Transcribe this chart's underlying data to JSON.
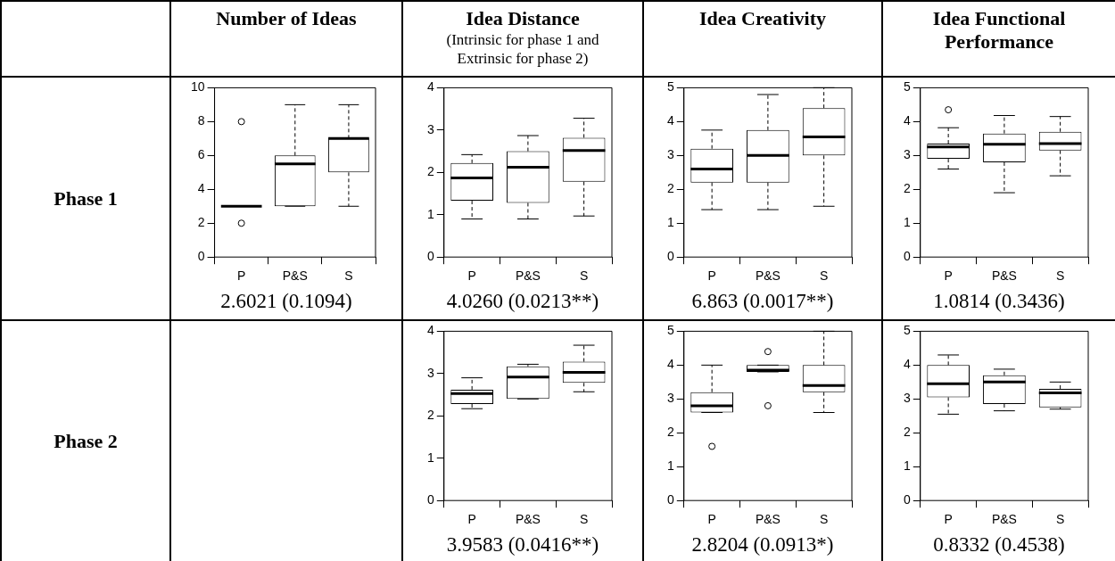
{
  "chart_data": [
    {
      "type": "other",
      "annotations": [
        "Phase 1",
        "Phase 2"
      ]
    },
    {
      "type": "box",
      "title": "Number of Ideas",
      "categories": [
        "P",
        "P&S",
        "S"
      ],
      "ylim": [
        0,
        10
      ],
      "yticks": [
        0,
        2,
        4,
        6,
        8,
        10
      ],
      "grid": false,
      "annotations": [
        "2.6021 (0.1094)"
      ],
      "boxes": [
        {
          "low": 3,
          "q1": 3,
          "median": 3,
          "q3": 3,
          "high": 3,
          "outliers": [
            8,
            2
          ]
        },
        {
          "low": 3,
          "q1": 3,
          "median": 5.5,
          "q3": 6,
          "high": 9
        },
        {
          "low": 3,
          "q1": 5,
          "median": 7,
          "q3": 7,
          "high": 9
        }
      ]
    },
    {
      "type": "box",
      "title": "Idea Distance",
      "subtitle": "(Intrinsic for phase 1 and Extrinsic for phase 2)",
      "categories": [
        "P",
        "P&S",
        "S"
      ],
      "ylim": [
        0,
        4
      ],
      "yticks": [
        0,
        1,
        2,
        3,
        4
      ],
      "grid": false,
      "annotations": [
        "4.0260 (0.0213**)"
      ],
      "boxes": [
        {
          "low": 0.9,
          "q1": 1.33,
          "median": 1.87,
          "q3": 2.22,
          "high": 2.42
        },
        {
          "low": 0.9,
          "q1": 1.28,
          "median": 2.12,
          "q3": 2.5,
          "high": 2.87
        },
        {
          "low": 0.97,
          "q1": 1.78,
          "median": 2.52,
          "q3": 2.82,
          "high": 3.28
        }
      ]
    },
    {
      "type": "box",
      "title": "Idea Creativity",
      "categories": [
        "P",
        "P&S",
        "S"
      ],
      "ylim": [
        0,
        5
      ],
      "yticks": [
        0,
        1,
        2,
        3,
        4,
        5
      ],
      "grid": false,
      "annotations": [
        "6.863 (0.0017**)"
      ],
      "boxes": [
        {
          "low": 1.4,
          "q1": 2.2,
          "median": 2.6,
          "q3": 3.2,
          "high": 3.75
        },
        {
          "low": 1.4,
          "q1": 2.2,
          "median": 3.0,
          "q3": 3.75,
          "high": 4.8
        },
        {
          "low": 1.5,
          "q1": 3.0,
          "median": 3.55,
          "q3": 4.4,
          "high": 5.0
        }
      ]
    },
    {
      "type": "box",
      "title": "Idea Functional Performance",
      "categories": [
        "P",
        "P&S",
        "S"
      ],
      "ylim": [
        0,
        5
      ],
      "yticks": [
        0,
        1,
        2,
        3,
        4,
        5
      ],
      "grid": false,
      "annotations": [
        "1.0814 (0.3436)"
      ],
      "boxes": [
        {
          "low": 2.6,
          "q1": 2.9,
          "median": 3.25,
          "q3": 3.35,
          "high": 3.82,
          "outliers": [
            4.35
          ]
        },
        {
          "low": 1.9,
          "q1": 2.8,
          "median": 3.33,
          "q3": 3.65,
          "high": 4.18
        },
        {
          "low": 2.4,
          "q1": 3.15,
          "median": 3.35,
          "q3": 3.7,
          "high": 4.15
        }
      ]
    },
    {
      "type": "box",
      "categories": [
        "P",
        "P&S",
        "S"
      ],
      "ylim": [
        0,
        4
      ],
      "yticks": [
        0,
        1,
        2,
        3,
        4
      ],
      "grid": false,
      "annotations": [
        "3.9583 (0.0416**)"
      ],
      "boxes": [
        {
          "low": 2.17,
          "q1": 2.28,
          "median": 2.53,
          "q3": 2.62,
          "high": 2.9
        },
        {
          "low": 2.4,
          "q1": 2.4,
          "median": 2.92,
          "q3": 3.17,
          "high": 3.22
        },
        {
          "low": 2.57,
          "q1": 2.78,
          "median": 3.03,
          "q3": 3.28,
          "high": 3.67
        }
      ]
    },
    {
      "type": "box",
      "categories": [
        "P",
        "P&S",
        "S"
      ],
      "ylim": [
        0,
        5
      ],
      "yticks": [
        0,
        1,
        2,
        3,
        4,
        5
      ],
      "grid": false,
      "annotations": [
        "2.8204 (0.0913*)"
      ],
      "boxes": [
        {
          "low": 2.6,
          "q1": 2.6,
          "median": 2.8,
          "q3": 3.2,
          "high": 4.0,
          "outliers": [
            1.6
          ]
        },
        {
          "low": 3.8,
          "q1": 3.8,
          "median": 3.85,
          "q3": 4.0,
          "high": 4.0,
          "outliers": [
            4.4,
            2.8
          ]
        },
        {
          "low": 2.6,
          "q1": 3.2,
          "median": 3.4,
          "q3": 4.0,
          "high": 5.0
        }
      ]
    },
    {
      "type": "box",
      "categories": [
        "P",
        "P&S",
        "S"
      ],
      "ylim": [
        0,
        5
      ],
      "yticks": [
        0,
        1,
        2,
        3,
        4,
        5
      ],
      "grid": false,
      "annotations": [
        "0.8332 (0.4538)"
      ],
      "boxes": [
        {
          "low": 2.55,
          "q1": 3.05,
          "median": 3.45,
          "q3": 4.0,
          "high": 4.3
        },
        {
          "low": 2.65,
          "q1": 2.85,
          "median": 3.5,
          "q3": 3.7,
          "high": 3.88
        },
        {
          "low": 2.7,
          "q1": 2.75,
          "median": 3.18,
          "q3": 3.3,
          "high": 3.5
        }
      ]
    }
  ]
}
